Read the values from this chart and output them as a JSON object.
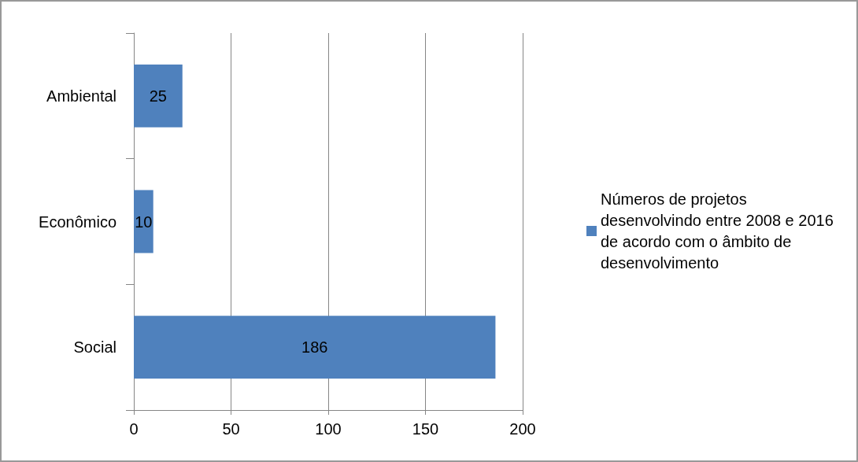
{
  "chart_data": {
    "type": "bar",
    "orientation": "horizontal",
    "categories": [
      "Ambiental",
      "Econômico",
      "Social"
    ],
    "series": [
      {
        "name": "Números de projetos desenvolvindo entre 2008 e 2016 de acordo com o âmbito de desenvolvimento",
        "color": "#4f81bd",
        "values": [
          25,
          10,
          186
        ]
      }
    ],
    "xlim": [
      0,
      200
    ],
    "xticks": [
      0,
      50,
      100,
      150,
      200
    ],
    "grid": "x",
    "legend": "right",
    "data_labels": true
  }
}
